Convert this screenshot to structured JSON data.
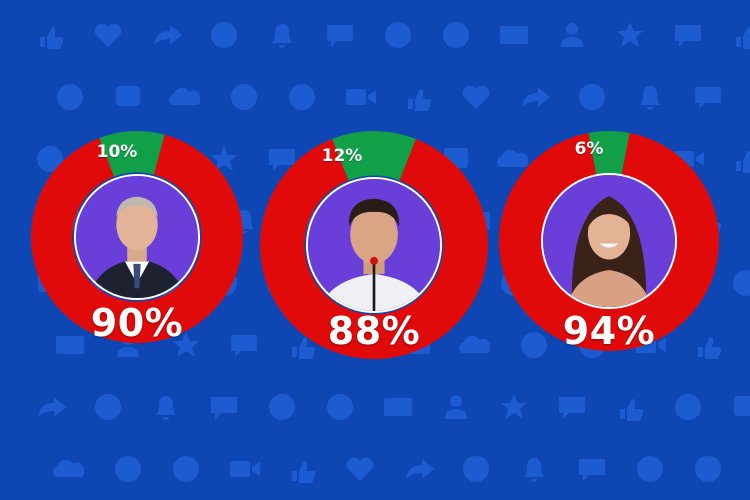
{
  "colors": {
    "background": "#0e47b3",
    "pattern_icon": "#1d5cd0",
    "ring_major": "#e00a0a",
    "ring_minor": "#11a048",
    "avatar_bg": "#6a3fd9"
  },
  "background_icons": [
    "thumbs-up-icon",
    "heart-icon",
    "share-icon",
    "check-icon",
    "bell-icon",
    "chat-icon",
    "close-icon",
    "play-icon",
    "mail-icon",
    "user-icon",
    "star-icon",
    "comment-icon",
    "like-icon",
    "smile-icon",
    "hashtag-icon",
    "cloud-icon",
    "phone-icon",
    "plus-icon",
    "camera-icon"
  ],
  "chart_data": {
    "type": "pie",
    "charts": [
      {
        "avatar": "older-man-in-suit",
        "slices": [
          {
            "value": 90,
            "label": "90%",
            "color": "#e00a0a"
          },
          {
            "value": 10,
            "label": "10%",
            "color": "#11a048"
          }
        ]
      },
      {
        "avatar": "man-at-microphone",
        "slices": [
          {
            "value": 88,
            "label": "88%",
            "color": "#e00a0a"
          },
          {
            "value": 12,
            "label": "12%",
            "color": "#11a048"
          }
        ]
      },
      {
        "avatar": "smiling-woman",
        "slices": [
          {
            "value": 94,
            "label": "94%",
            "color": "#e00a0a"
          },
          {
            "value": 6,
            "label": "6%",
            "color": "#11a048"
          }
        ]
      }
    ]
  }
}
